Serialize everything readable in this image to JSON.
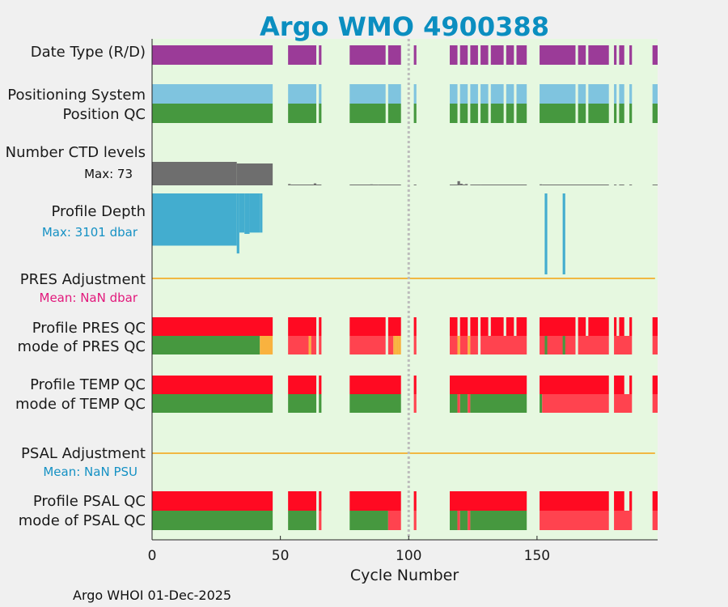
{
  "chart_data": {
    "type": "status-timeline",
    "title": "Argo WMO 4900388",
    "xlabel": "Cycle Number",
    "xlim": [
      0,
      197
    ],
    "xticks": [
      "0",
      "50",
      "100",
      "150"
    ],
    "xtick_values": [
      0,
      50,
      100,
      150
    ],
    "reference_cycle": 100,
    "footer": "Argo WHOI 01-Dec-2025",
    "colors": {
      "background": "#e6f8e0",
      "data_type_R": "#9b3b98",
      "positioning": "#7fc4df",
      "good": "#46983f",
      "bad": "#ff0a22",
      "bad_light": "#ff434f",
      "probably_good": "#f9b23f",
      "ctd_levels": "#6e6e6e",
      "profile_depth": "#43adcf",
      "adjustment_line": "#f1b843",
      "pres_stat": "#e2197c",
      "psal_stat": "#1591c4"
    },
    "labels": {
      "data_type": "Date Type (R/D)",
      "positioning": "Positioning System",
      "position_qc": "Position QC",
      "ctd_levels": "Number CTD levels",
      "ctd_max": "Max: 73",
      "profile_depth": "Profile Depth",
      "depth_max": "Max: 3101 dbar",
      "pres_adj": "PRES Adjustment",
      "pres_mean": "Mean:  NaN dbar",
      "profile_pres_qc": "Profile PRES QC",
      "mode_pres_qc": "mode of PRES QC",
      "profile_temp_qc": "Profile TEMP QC",
      "mode_temp_qc": "mode of TEMP QC",
      "psal_adj": "PSAL Adjustment",
      "psal_mean": "Mean:  NaN PSU",
      "profile_psal_qc": "Profile PSAL QC",
      "mode_psal_qc": "mode of PSAL QC"
    },
    "profile_cycles": [
      [
        0,
        47
      ],
      [
        53,
        64
      ],
      [
        65,
        66
      ],
      [
        77,
        91
      ],
      [
        92,
        97
      ],
      [
        102,
        103
      ],
      [
        116,
        119
      ],
      [
        120,
        123
      ],
      [
        124,
        127
      ],
      [
        128,
        131
      ],
      [
        132,
        137
      ],
      [
        138,
        141
      ],
      [
        142,
        146
      ],
      [
        151,
        165
      ],
      [
        166,
        169
      ],
      [
        170,
        178
      ],
      [
        180,
        181
      ],
      [
        182,
        184
      ],
      [
        186,
        187
      ],
      [
        195,
        197
      ]
    ],
    "ctd_levels_max": 73,
    "ctd_levels_series": [
      [
        0,
        33,
        73
      ],
      [
        33,
        47,
        68
      ],
      [
        53,
        54,
        4
      ],
      [
        54,
        63,
        1
      ],
      [
        63,
        64,
        6
      ],
      [
        64,
        66,
        1
      ],
      [
        77,
        88,
        1
      ],
      [
        85,
        86,
        3
      ],
      [
        88,
        97,
        1
      ],
      [
        102,
        103,
        1
      ],
      [
        116,
        119,
        1
      ],
      [
        119,
        120,
        13
      ],
      [
        120,
        121,
        5
      ],
      [
        121,
        122,
        1
      ],
      [
        122,
        123,
        4
      ],
      [
        124,
        128,
        2
      ],
      [
        128,
        146,
        1
      ],
      [
        151,
        152,
        3
      ],
      [
        152,
        178,
        1
      ],
      [
        180,
        181,
        1
      ],
      [
        182,
        184,
        1
      ],
      [
        186,
        187,
        1
      ],
      [
        195,
        197,
        1
      ]
    ],
    "profile_depth_max": 3101,
    "profile_depth_series": [
      [
        0,
        33,
        2000
      ],
      [
        33,
        34,
        2300
      ],
      [
        34,
        36,
        1500
      ],
      [
        36,
        38,
        1550
      ],
      [
        38,
        42,
        1500
      ],
      [
        42,
        43,
        1500
      ],
      [
        153,
        154,
        3101
      ],
      [
        160,
        161,
        3101
      ]
    ],
    "pres_adjustment_mean": "NaN",
    "psal_adjustment_mean": "NaN",
    "profile_pres_qc": [
      [
        0,
        47,
        "bad"
      ],
      [
        53,
        64,
        "bad"
      ],
      [
        65,
        66,
        "bad"
      ],
      [
        77,
        91,
        "bad"
      ],
      [
        92,
        97,
        "bad"
      ],
      [
        102,
        103,
        "bad"
      ],
      [
        116,
        119,
        "bad"
      ],
      [
        120,
        123,
        "bad"
      ],
      [
        124,
        127,
        "bad"
      ],
      [
        128,
        131,
        "bad"
      ],
      [
        132,
        137,
        "bad"
      ],
      [
        138,
        141,
        "bad"
      ],
      [
        142,
        146,
        "bad"
      ],
      [
        151,
        165,
        "bad"
      ],
      [
        166,
        169,
        "bad"
      ],
      [
        170,
        178,
        "bad"
      ],
      [
        180,
        181,
        "bad"
      ],
      [
        182,
        184,
        "bad"
      ],
      [
        186,
        187,
        "bad"
      ],
      [
        195,
        197,
        "bad"
      ]
    ],
    "mode_pres_qc": [
      [
        0,
        42,
        "good"
      ],
      [
        42,
        47,
        "probably_good"
      ],
      [
        53,
        61,
        "bad_light"
      ],
      [
        61,
        62,
        "probably_good"
      ],
      [
        62,
        64,
        "bad_light"
      ],
      [
        65,
        66,
        "bad_light"
      ],
      [
        77,
        91,
        "bad_light"
      ],
      [
        94,
        95,
        "probably_good"
      ],
      [
        95,
        96,
        "probably_good"
      ],
      [
        92,
        94,
        "bad_light"
      ],
      [
        96,
        97,
        "probably_good"
      ],
      [
        102,
        103,
        "bad_light"
      ],
      [
        116,
        119,
        "bad_light"
      ],
      [
        120,
        123,
        "bad_light"
      ],
      [
        119,
        120,
        "probably_good"
      ],
      [
        123,
        124,
        "probably_good"
      ],
      [
        124,
        127,
        "bad_light"
      ],
      [
        128,
        146,
        "bad_light"
      ],
      [
        151,
        165,
        "bad_light"
      ],
      [
        153,
        154,
        "good"
      ],
      [
        160,
        161,
        "good"
      ],
      [
        166,
        178,
        "bad_light"
      ],
      [
        180,
        187,
        "bad_light"
      ],
      [
        195,
        197,
        "bad_light"
      ]
    ],
    "profile_temp_qc": [
      [
        0,
        47,
        "bad"
      ],
      [
        53,
        64,
        "bad"
      ],
      [
        65,
        66,
        "bad"
      ],
      [
        77,
        97,
        "bad"
      ],
      [
        102,
        103,
        "bad"
      ],
      [
        116,
        146,
        "bad"
      ],
      [
        151,
        178,
        "bad"
      ],
      [
        180,
        184,
        "bad"
      ],
      [
        186,
        187,
        "bad"
      ],
      [
        195,
        197,
        "bad"
      ]
    ],
    "mode_temp_qc": [
      [
        0,
        47,
        "good"
      ],
      [
        53,
        64,
        "good"
      ],
      [
        65,
        66,
        "good"
      ],
      [
        77,
        97,
        "good"
      ],
      [
        102,
        103,
        "bad_light"
      ],
      [
        116,
        119,
        "good"
      ],
      [
        120,
        123,
        "good"
      ],
      [
        119,
        120,
        "bad_light"
      ],
      [
        123,
        124,
        "bad_light"
      ],
      [
        124,
        146,
        "good"
      ],
      [
        151,
        152,
        "good"
      ],
      [
        152,
        178,
        "bad_light"
      ],
      [
        180,
        187,
        "bad_light"
      ],
      [
        195,
        197,
        "bad_light"
      ]
    ],
    "profile_psal_qc": [
      [
        0,
        47,
        "bad"
      ],
      [
        53,
        64,
        "bad"
      ],
      [
        65,
        66,
        "bad"
      ],
      [
        77,
        97,
        "bad"
      ],
      [
        102,
        103,
        "bad"
      ],
      [
        116,
        146,
        "bad"
      ],
      [
        151,
        178,
        "bad"
      ],
      [
        180,
        184,
        "bad"
      ],
      [
        186,
        187,
        "bad"
      ],
      [
        195,
        197,
        "bad"
      ]
    ],
    "mode_psal_qc": [
      [
        0,
        47,
        "good"
      ],
      [
        53,
        64,
        "good"
      ],
      [
        65,
        66,
        "bad_light"
      ],
      [
        77,
        92,
        "good"
      ],
      [
        92,
        97,
        "bad_light"
      ],
      [
        102,
        103,
        "bad_light"
      ],
      [
        116,
        119,
        "good"
      ],
      [
        119,
        120,
        "bad_light"
      ],
      [
        120,
        123,
        "good"
      ],
      [
        123,
        124,
        "bad_light"
      ],
      [
        124,
        146,
        "good"
      ],
      [
        151,
        178,
        "bad_light"
      ],
      [
        180,
        187,
        "bad_light"
      ],
      [
        195,
        197,
        "bad_light"
      ]
    ]
  }
}
